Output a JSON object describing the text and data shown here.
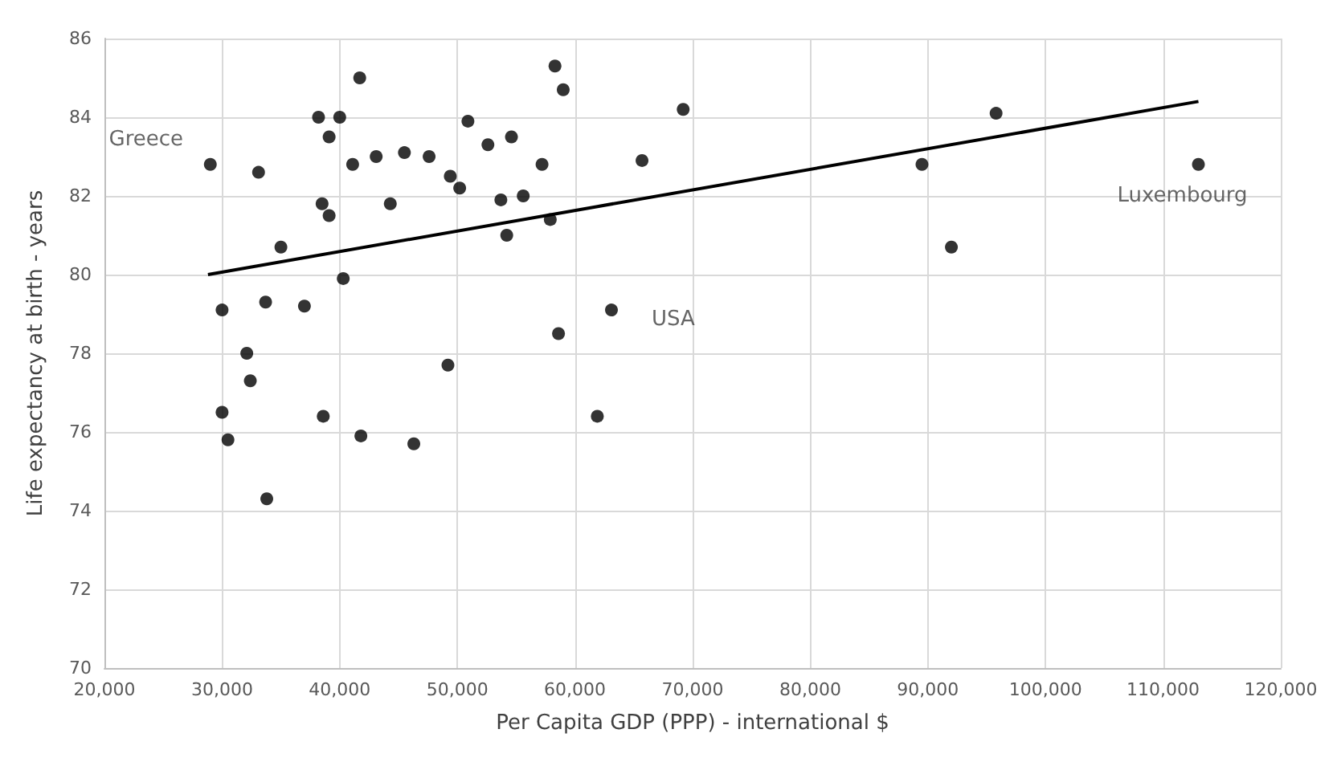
{
  "chart_data": {
    "type": "scatter",
    "xlabel": "Per Capita GDP (PPP) - international $",
    "ylabel": "Life expectancy at birth - years",
    "xlim": [
      20000,
      120000
    ],
    "ylim": [
      70,
      86
    ],
    "xticks": [
      {
        "value": 20000,
        "label": "20,000"
      },
      {
        "value": 30000,
        "label": "30,000"
      },
      {
        "value": 40000,
        "label": "40,000"
      },
      {
        "value": 50000,
        "label": "50,000"
      },
      {
        "value": 60000,
        "label": "60,000"
      },
      {
        "value": 70000,
        "label": "70,000"
      },
      {
        "value": 80000,
        "label": "80,000"
      },
      {
        "value": 90000,
        "label": "90,000"
      },
      {
        "value": 100000,
        "label": "100,000"
      },
      {
        "value": 110000,
        "label": "110,000"
      },
      {
        "value": 120000,
        "label": "120,000"
      }
    ],
    "yticks": [
      70,
      72,
      74,
      76,
      78,
      80,
      82,
      84,
      86
    ],
    "grid": true,
    "marker": "circle",
    "series": [
      {
        "color": "#000000",
        "x": [
          29000,
          33100,
          41700,
          38200,
          40000,
          39100,
          41100,
          43100,
          45500,
          47600,
          49400,
          50200,
          50900,
          52600,
          54600,
          57200,
          55600,
          53700,
          54200,
          57900,
          58300,
          59000,
          38500,
          39100,
          44300,
          35000,
          40300,
          30000,
          33700,
          37000,
          32100,
          32400,
          49200,
          58600,
          30000,
          30500,
          38600,
          41800,
          46300,
          33800,
          69200,
          65700,
          63100,
          61900,
          89500,
          92000,
          95800,
          113000
        ],
        "values": [
          82.8,
          82.6,
          85.0,
          84.0,
          84.0,
          83.5,
          82.8,
          83.0,
          83.1,
          83.0,
          82.5,
          82.2,
          83.9,
          83.3,
          83.5,
          82.8,
          82.0,
          81.9,
          81.0,
          81.4,
          85.3,
          84.7,
          81.8,
          81.5,
          81.8,
          80.7,
          79.9,
          79.1,
          79.3,
          79.2,
          78.0,
          77.3,
          77.7,
          78.5,
          76.5,
          75.8,
          76.4,
          75.9,
          75.7,
          74.3,
          84.2,
          82.9,
          79.1,
          76.4,
          82.8,
          80.7,
          84.1,
          82.8
        ]
      },
      {
        "type": "line",
        "color": "#000000",
        "marker": "none",
        "x": [
          28800,
          113000
        ],
        "values": [
          80.0,
          84.4
        ]
      }
    ],
    "annotations": [
      {
        "text": "Greece",
        "x": 29000,
        "y": 82.8
      },
      {
        "text": "USA",
        "x": 63100,
        "y": 79.1
      },
      {
        "text": "Luxembourg",
        "x": 113000,
        "y": 82.8
      }
    ]
  }
}
